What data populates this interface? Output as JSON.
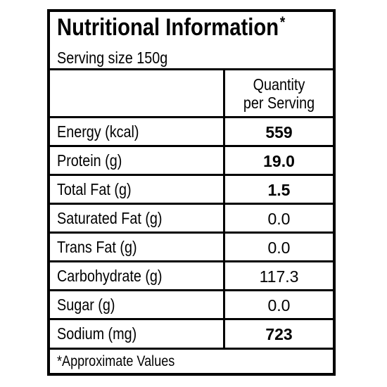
{
  "label": {
    "title": "Nutritional Information",
    "title_asterisk": "*",
    "serving_size": "Serving size 150g",
    "column_header_line1": "Quantity",
    "column_header_line2": "per Serving",
    "rows": [
      {
        "nutrient": "Energy (kcal)",
        "value": "559"
      },
      {
        "nutrient": "Protein (g)",
        "value": "19.0"
      },
      {
        "nutrient": "Total Fat (g)",
        "value": "1.5"
      },
      {
        "nutrient": "Saturated Fat (g)",
        "value": "0.0"
      },
      {
        "nutrient": "Trans Fat (g)",
        "value": "0.0"
      },
      {
        "nutrient": "Carbohydrate (g)",
        "value": "117.3"
      },
      {
        "nutrient": "Sugar (g)",
        "value": "0.0"
      },
      {
        "nutrient": "Sodium (mg)",
        "value": "723"
      }
    ],
    "footnote": "*Approximate Values"
  }
}
